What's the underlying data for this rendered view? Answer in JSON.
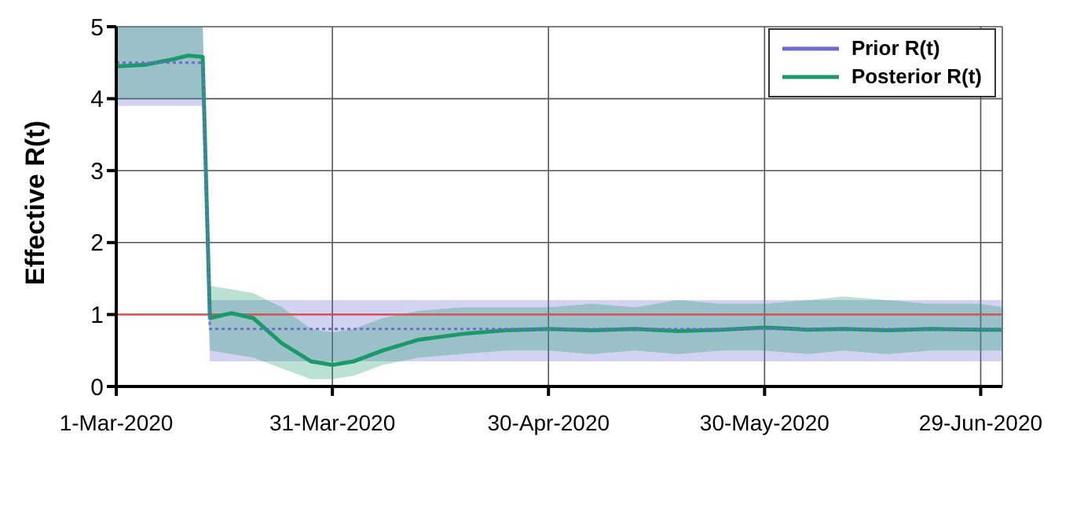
{
  "chart_data": {
    "type": "line",
    "ylabel": "Effective R(t)",
    "xlim": [
      "2020-03-01",
      "2020-07-02"
    ],
    "xticks": [
      {
        "value": "2020-03-01",
        "label": "1-Mar-2020"
      },
      {
        "value": "2020-03-31",
        "label": "31-Mar-2020"
      },
      {
        "value": "2020-04-30",
        "label": "30-Apr-2020"
      },
      {
        "value": "2020-05-30",
        "label": "30-May-2020"
      },
      {
        "value": "2020-06-29",
        "label": "29-Jun-2020"
      }
    ],
    "ylim": [
      0,
      5
    ],
    "yticks": [
      0,
      1,
      2,
      3,
      4,
      5
    ],
    "grid": true,
    "legend": "top right",
    "ref_lines": [
      {
        "axis": "y",
        "value": 1,
        "color": "#ee4444"
      }
    ],
    "series": [
      {
        "name": "Prior R(t)",
        "color": "#6b6bd0",
        "line_style": "dotted",
        "x": [
          "2020-03-01",
          "2020-03-13",
          "2020-03-14",
          "2020-07-02"
        ],
        "values": [
          4.5,
          4.5,
          0.8,
          0.8
        ],
        "lower": [
          3.9,
          3.9,
          0.35,
          0.35
        ],
        "upper": [
          5.0,
          5.0,
          1.2,
          1.2
        ]
      },
      {
        "name": "Posterior R(t)",
        "color": "#1a9a6a",
        "line_style": "solid",
        "x": [
          "2020-03-01",
          "2020-03-05",
          "2020-03-09",
          "2020-03-11",
          "2020-03-13",
          "2020-03-14",
          "2020-03-17",
          "2020-03-20",
          "2020-03-24",
          "2020-03-28",
          "2020-03-31",
          "2020-04-03",
          "2020-04-07",
          "2020-04-12",
          "2020-04-18",
          "2020-04-24",
          "2020-04-30",
          "2020-05-06",
          "2020-05-12",
          "2020-05-18",
          "2020-05-24",
          "2020-05-30",
          "2020-06-05",
          "2020-06-10",
          "2020-06-16",
          "2020-06-22",
          "2020-06-29",
          "2020-07-02"
        ],
        "values": [
          4.45,
          4.47,
          4.55,
          4.6,
          4.58,
          0.95,
          1.02,
          0.95,
          0.6,
          0.35,
          0.3,
          0.35,
          0.5,
          0.65,
          0.73,
          0.78,
          0.8,
          0.78,
          0.8,
          0.77,
          0.79,
          0.82,
          0.79,
          0.8,
          0.78,
          0.8,
          0.79,
          0.79
        ],
        "lower": [
          4.0,
          4.0,
          4.0,
          4.0,
          4.0,
          0.5,
          0.45,
          0.4,
          0.25,
          0.1,
          0.1,
          0.15,
          0.3,
          0.4,
          0.45,
          0.5,
          0.5,
          0.45,
          0.5,
          0.45,
          0.5,
          0.5,
          0.45,
          0.5,
          0.45,
          0.5,
          0.5,
          0.5
        ],
        "upper": [
          5.0,
          5.0,
          5.0,
          5.0,
          5.0,
          1.4,
          1.35,
          1.3,
          1.1,
          0.8,
          0.75,
          0.8,
          0.95,
          1.05,
          1.1,
          1.1,
          1.1,
          1.15,
          1.1,
          1.2,
          1.15,
          1.15,
          1.2,
          1.25,
          1.2,
          1.15,
          1.15,
          1.1
        ]
      }
    ]
  }
}
